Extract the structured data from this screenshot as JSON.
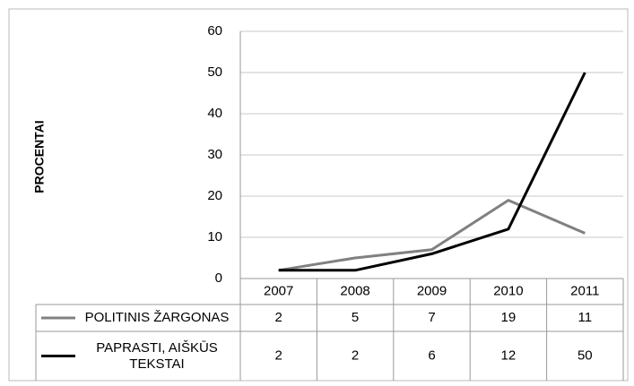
{
  "chart_data": {
    "type": "line",
    "y_label": "PROCENTAI",
    "categories": [
      "2007",
      "2008",
      "2009",
      "2010",
      "2011"
    ],
    "series": [
      {
        "name": "POLITINIS ŽARGONAS",
        "color": "#808080",
        "values": [
          2,
          5,
          7,
          19,
          11
        ]
      },
      {
        "name": "PAPRASTI, AIŠKŪS TEKSTAI",
        "color": "#000000",
        "values": [
          2,
          2,
          6,
          12,
          50
        ]
      }
    ],
    "ylim": [
      0,
      60
    ],
    "yticks": [
      0,
      10,
      20,
      30,
      40,
      50,
      60
    ],
    "grid": true,
    "data_table": true
  }
}
